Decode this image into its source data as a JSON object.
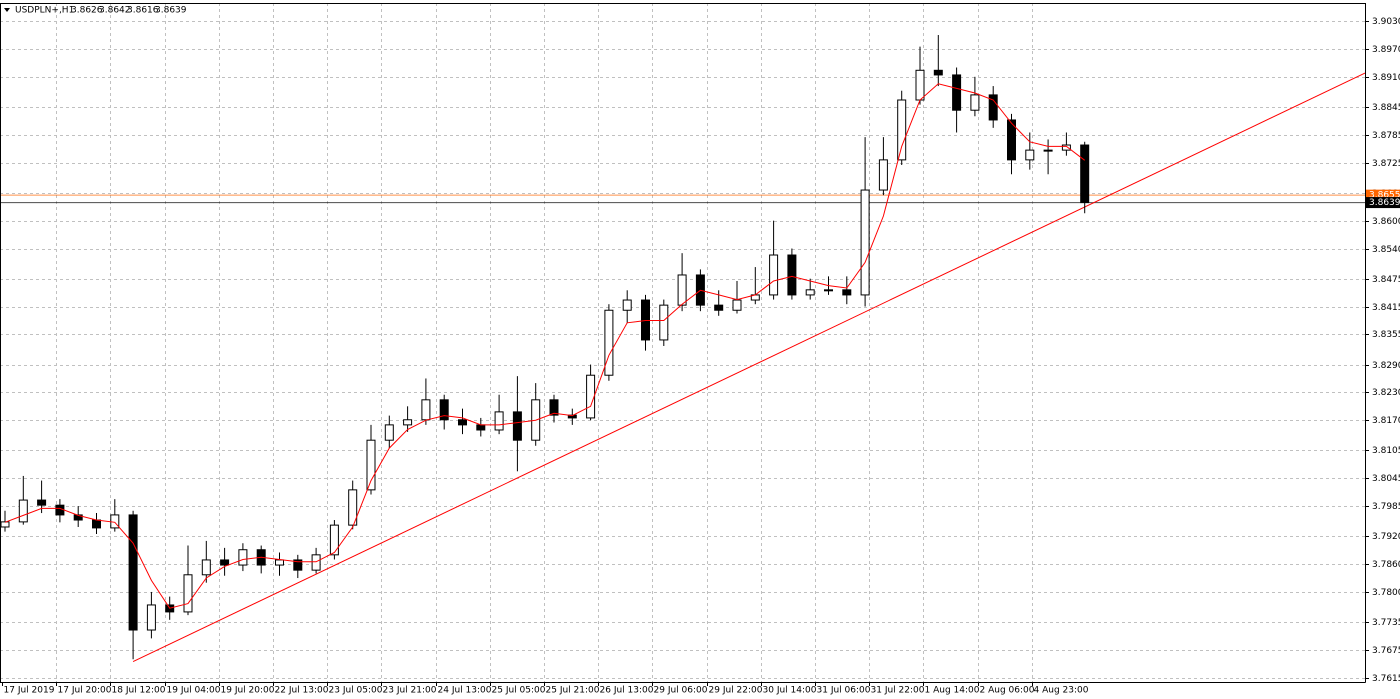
{
  "chart_data": {
    "type": "candlestick",
    "symbol": "USDPLN+,H1",
    "ohlc": [
      3.8626,
      3.8642,
      3.8616,
      3.8639
    ],
    "categories": [
      "17 Jul 2019",
      "17 Jul 20:00",
      "18 Jul 12:00",
      "19 Jul 04:00",
      "19 Jul 20:00",
      "22 Jul 13:00",
      "23 Jul 05:00",
      "23 Jul 21:00",
      "24 Jul 13:00",
      "25 Jul 05:00",
      "25 Jul 21:00",
      "26 Jul 13:00",
      "29 Jul 06:00",
      "29 Jul 22:00",
      "30 Jul 14:00",
      "31 Jul 06:00",
      "31 Jul 22:00",
      "1 Aug 14:00",
      "2 Aug 06:00",
      "4 Aug 23:00"
    ],
    "candles": [
      [
        3.794,
        3.7975,
        3.793,
        3.7951
      ],
      [
        3.7951,
        3.805,
        3.7945,
        3.7998
      ],
      [
        3.7998,
        3.804,
        3.797,
        3.7987
      ],
      [
        3.7987,
        3.8,
        3.795,
        3.7966
      ],
      [
        3.7966,
        3.7985,
        3.794,
        3.7955
      ],
      [
        3.7955,
        3.797,
        3.7925,
        3.7938
      ],
      [
        3.7938,
        3.8,
        3.793,
        3.7966
      ],
      [
        3.7966,
        3.7975,
        3.7655,
        3.7718
      ],
      [
        3.7718,
        3.78,
        3.77,
        3.7772
      ],
      [
        3.7772,
        3.779,
        3.774,
        3.7757
      ],
      [
        3.7757,
        3.79,
        3.775,
        3.7837
      ],
      [
        3.7837,
        3.791,
        3.782,
        3.7869
      ],
      [
        3.7869,
        3.7895,
        3.7835,
        3.7858
      ],
      [
        3.7858,
        3.7905,
        3.7845,
        3.7891
      ],
      [
        3.7891,
        3.79,
        3.784,
        3.7858
      ],
      [
        3.7858,
        3.7885,
        3.7835,
        3.7869
      ],
      [
        3.7869,
        3.788,
        3.783,
        3.7847
      ],
      [
        3.7847,
        3.7895,
        3.784,
        3.788
      ],
      [
        3.788,
        3.7955,
        3.787,
        3.7944
      ],
      [
        3.7944,
        3.804,
        3.7935,
        3.802
      ],
      [
        3.802,
        3.816,
        3.801,
        3.8127
      ],
      [
        3.8127,
        3.818,
        3.811,
        3.816
      ],
      [
        3.816,
        3.82,
        3.8145,
        3.8171
      ],
      [
        3.8171,
        3.826,
        3.816,
        3.8214
      ],
      [
        3.8214,
        3.8225,
        3.815,
        3.8171
      ],
      [
        3.8171,
        3.8195,
        3.814,
        3.816
      ],
      [
        3.816,
        3.8175,
        3.8135,
        3.8149
      ],
      [
        3.8149,
        3.8225,
        3.814,
        3.8188
      ],
      [
        3.8188,
        3.8265,
        3.806,
        3.8127
      ],
      [
        3.8127,
        3.825,
        3.8115,
        3.8214
      ],
      [
        3.8214,
        3.8225,
        3.8165,
        3.8181
      ],
      [
        3.8181,
        3.8195,
        3.816,
        3.8175
      ],
      [
        3.8175,
        3.829,
        3.817,
        3.8267
      ],
      [
        3.8267,
        3.842,
        3.8255,
        3.8407
      ],
      [
        3.8407,
        3.845,
        3.838,
        3.8429
      ],
      [
        3.8429,
        3.844,
        3.832,
        3.8343
      ],
      [
        3.8343,
        3.843,
        3.833,
        3.8418
      ],
      [
        3.8418,
        3.853,
        3.8405,
        3.8483
      ],
      [
        3.8483,
        3.8495,
        3.8405,
        3.8418
      ],
      [
        3.8418,
        3.845,
        3.8395,
        3.8407
      ],
      [
        3.8407,
        3.847,
        3.84,
        3.8429
      ],
      [
        3.8429,
        3.85,
        3.842,
        3.844
      ],
      [
        3.844,
        3.86,
        3.843,
        3.8526
      ],
      [
        3.8526,
        3.854,
        3.843,
        3.844
      ],
      [
        3.844,
        3.8475,
        3.843,
        3.8451
      ],
      [
        3.8451,
        3.848,
        3.844,
        3.8451
      ],
      [
        3.8451,
        3.848,
        3.842,
        3.844
      ],
      [
        3.844,
        3.878,
        3.8415,
        3.8666
      ],
      [
        3.8666,
        3.878,
        3.8655,
        3.8731
      ],
      [
        3.8731,
        3.888,
        3.872,
        3.886
      ],
      [
        3.886,
        3.8975,
        3.885,
        3.8924
      ],
      [
        3.8924,
        3.9,
        3.889,
        3.8914
      ],
      [
        3.8914,
        3.893,
        3.879,
        3.8838
      ],
      [
        3.8838,
        3.891,
        3.8825,
        3.8871
      ],
      [
        3.8871,
        3.889,
        3.88,
        3.8817
      ],
      [
        3.8817,
        3.883,
        3.87,
        3.8731
      ],
      [
        3.8731,
        3.879,
        3.871,
        3.8752
      ],
      [
        3.8752,
        3.8775,
        3.87,
        3.8752
      ],
      [
        3.8752,
        3.879,
        3.874,
        3.8763
      ],
      [
        3.8763,
        3.877,
        3.8616,
        3.8639
      ]
    ],
    "ma": {
      "color": "#ff0000",
      "values": [
        3.795,
        3.7965,
        3.798,
        3.798,
        3.7965,
        3.7955,
        3.795,
        3.7905,
        3.7825,
        3.7765,
        3.7775,
        3.783,
        3.7855,
        3.787,
        3.7875,
        3.787,
        3.7865,
        3.7865,
        3.7885,
        3.794,
        3.804,
        3.811,
        3.815,
        3.817,
        3.818,
        3.8175,
        3.816,
        3.816,
        3.8165,
        3.817,
        3.8185,
        3.818,
        3.82,
        3.831,
        3.838,
        3.8385,
        3.8385,
        3.842,
        3.845,
        3.844,
        3.843,
        3.844,
        3.847,
        3.848,
        3.847,
        3.846,
        3.8455,
        3.851,
        3.861,
        3.876,
        3.886,
        3.8895,
        3.8885,
        3.8875,
        3.886,
        3.881,
        3.877,
        3.876,
        3.876,
        3.873
      ]
    },
    "trendline": {
      "color": "#ff0000",
      "values": [
        3.765,
        3.8918
      ]
    },
    "levels": [
      {
        "value": 3.8655,
        "label": "3.8655",
        "color": "#ff6600"
      },
      {
        "value": 3.8639,
        "label": "3.8639",
        "color": "#000000"
      }
    ],
    "ylim": [
      3.7606,
      3.9069
    ],
    "yticks": [
      {
        "value": 3.903,
        "label": "3.9030"
      },
      {
        "value": 3.897,
        "label": "3.8970"
      },
      {
        "value": 3.891,
        "label": "3.8910"
      },
      3.8845,
      3.8785,
      3.8725,
      {
        "value": 3.866,
        "label": "3.8660"
      },
      {
        "value": 3.86,
        "label": "3.8600"
      },
      {
        "value": 3.854,
        "label": "3.8540"
      },
      3.8475,
      3.8415,
      3.8355,
      {
        "value": 3.829,
        "label": "3.8290"
      },
      {
        "value": 3.823,
        "label": "3.8230"
      },
      {
        "value": 3.817,
        "label": "3.8170"
      },
      3.8105,
      3.8045,
      3.7985,
      {
        "value": 3.792,
        "label": "3.7920"
      },
      {
        "value": 3.786,
        "label": "3.7860"
      },
      {
        "value": 3.78,
        "label": "3.7800"
      },
      3.7735,
      3.7675,
      3.7615
    ],
    "grid": true
  }
}
